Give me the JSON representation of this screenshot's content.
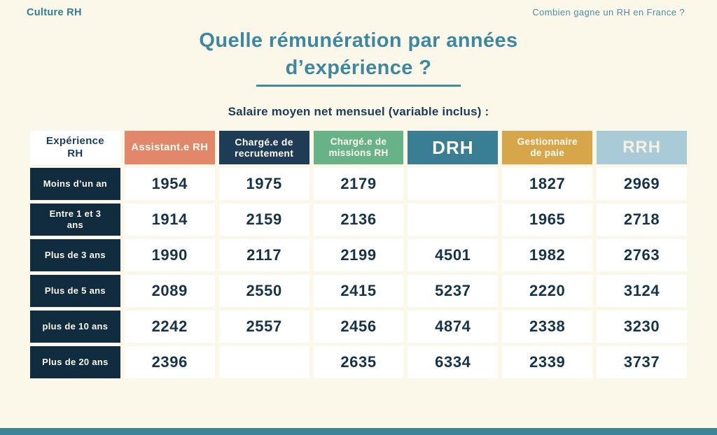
{
  "header": {
    "logo": "Culture RH",
    "link": "Combien gagne un RH en France ?"
  },
  "title": {
    "line1": "Quelle rémunération par années",
    "line2": "d’expérience ?"
  },
  "subtitle": "Salaire moyen net mensuel (variable inclus) :",
  "table": {
    "corner": "Expérience RH",
    "columns": [
      "Assistant.e RH",
      "Chargé.e de recrutement",
      "Chargé.e de missions RH",
      "DRH",
      "Gestionnaire de paie",
      "RRH"
    ],
    "rows": [
      {
        "label": "Moins d’un an",
        "values": [
          "1954",
          "1975",
          "2179",
          "",
          "1827",
          "2969"
        ]
      },
      {
        "label": "Entre 1 et 3 ans",
        "values": [
          "1914",
          "2159",
          "2136",
          "",
          "1965",
          "2718"
        ]
      },
      {
        "label": "Plus de 3 ans",
        "values": [
          "1990",
          "2117",
          "2199",
          "4501",
          "1982",
          "2763"
        ]
      },
      {
        "label": "Plus de 5 ans",
        "values": [
          "2089",
          "2550",
          "2415",
          "5237",
          "2220",
          "3124"
        ]
      },
      {
        "label": "plus de 10 ans",
        "values": [
          "2242",
          "2557",
          "2456",
          "4874",
          "2338",
          "3230"
        ]
      },
      {
        "label": "Plus de 20 ans",
        "values": [
          "2396",
          "",
          "2635",
          "6334",
          "2339",
          "3737"
        ]
      }
    ]
  },
  "colors": {
    "background": "#FBF7E9",
    "title_teal": "#3E87A0",
    "logo_teal": "#2E7D92",
    "link_teal": "#4A8FA5",
    "row_header_navy": "#112C3F",
    "col_recrutement_navy": "#1E3C55",
    "col_assistant_salmon": "#E2876A",
    "col_missions_green": "#68B287",
    "col_drh_teal": "#3A7E94",
    "col_paie_gold": "#D7A64B",
    "col_rrh_lightblue": "#A9CBD8",
    "value_navy": "#16334A",
    "footer_teal": "#3F8496"
  },
  "chart_data": {
    "type": "table",
    "title": "Quelle rémunération par années d’expérience ?",
    "subtitle": "Salaire moyen net mensuel (variable inclus) :",
    "row_header": "Expérience RH",
    "columns": [
      "Assistant.e RH",
      "Chargé.e de recrutement",
      "Chargé.e de missions RH",
      "DRH",
      "Gestionnaire de paie",
      "RRH"
    ],
    "rows": [
      "Moins d’un an",
      "Entre 1 et 3 ans",
      "Plus de 3 ans",
      "Plus de 5 ans",
      "plus de 10 ans",
      "Plus de 20 ans"
    ],
    "values": [
      [
        1954,
        1975,
        2179,
        null,
        1827,
        2969
      ],
      [
        1914,
        2159,
        2136,
        null,
        1965,
        2718
      ],
      [
        1990,
        2117,
        2199,
        4501,
        1982,
        2763
      ],
      [
        2089,
        2550,
        2415,
        5237,
        2220,
        3124
      ],
      [
        2242,
        2557,
        2456,
        4874,
        2338,
        3230
      ],
      [
        2396,
        null,
        2635,
        6334,
        2339,
        3737
      ]
    ]
  }
}
